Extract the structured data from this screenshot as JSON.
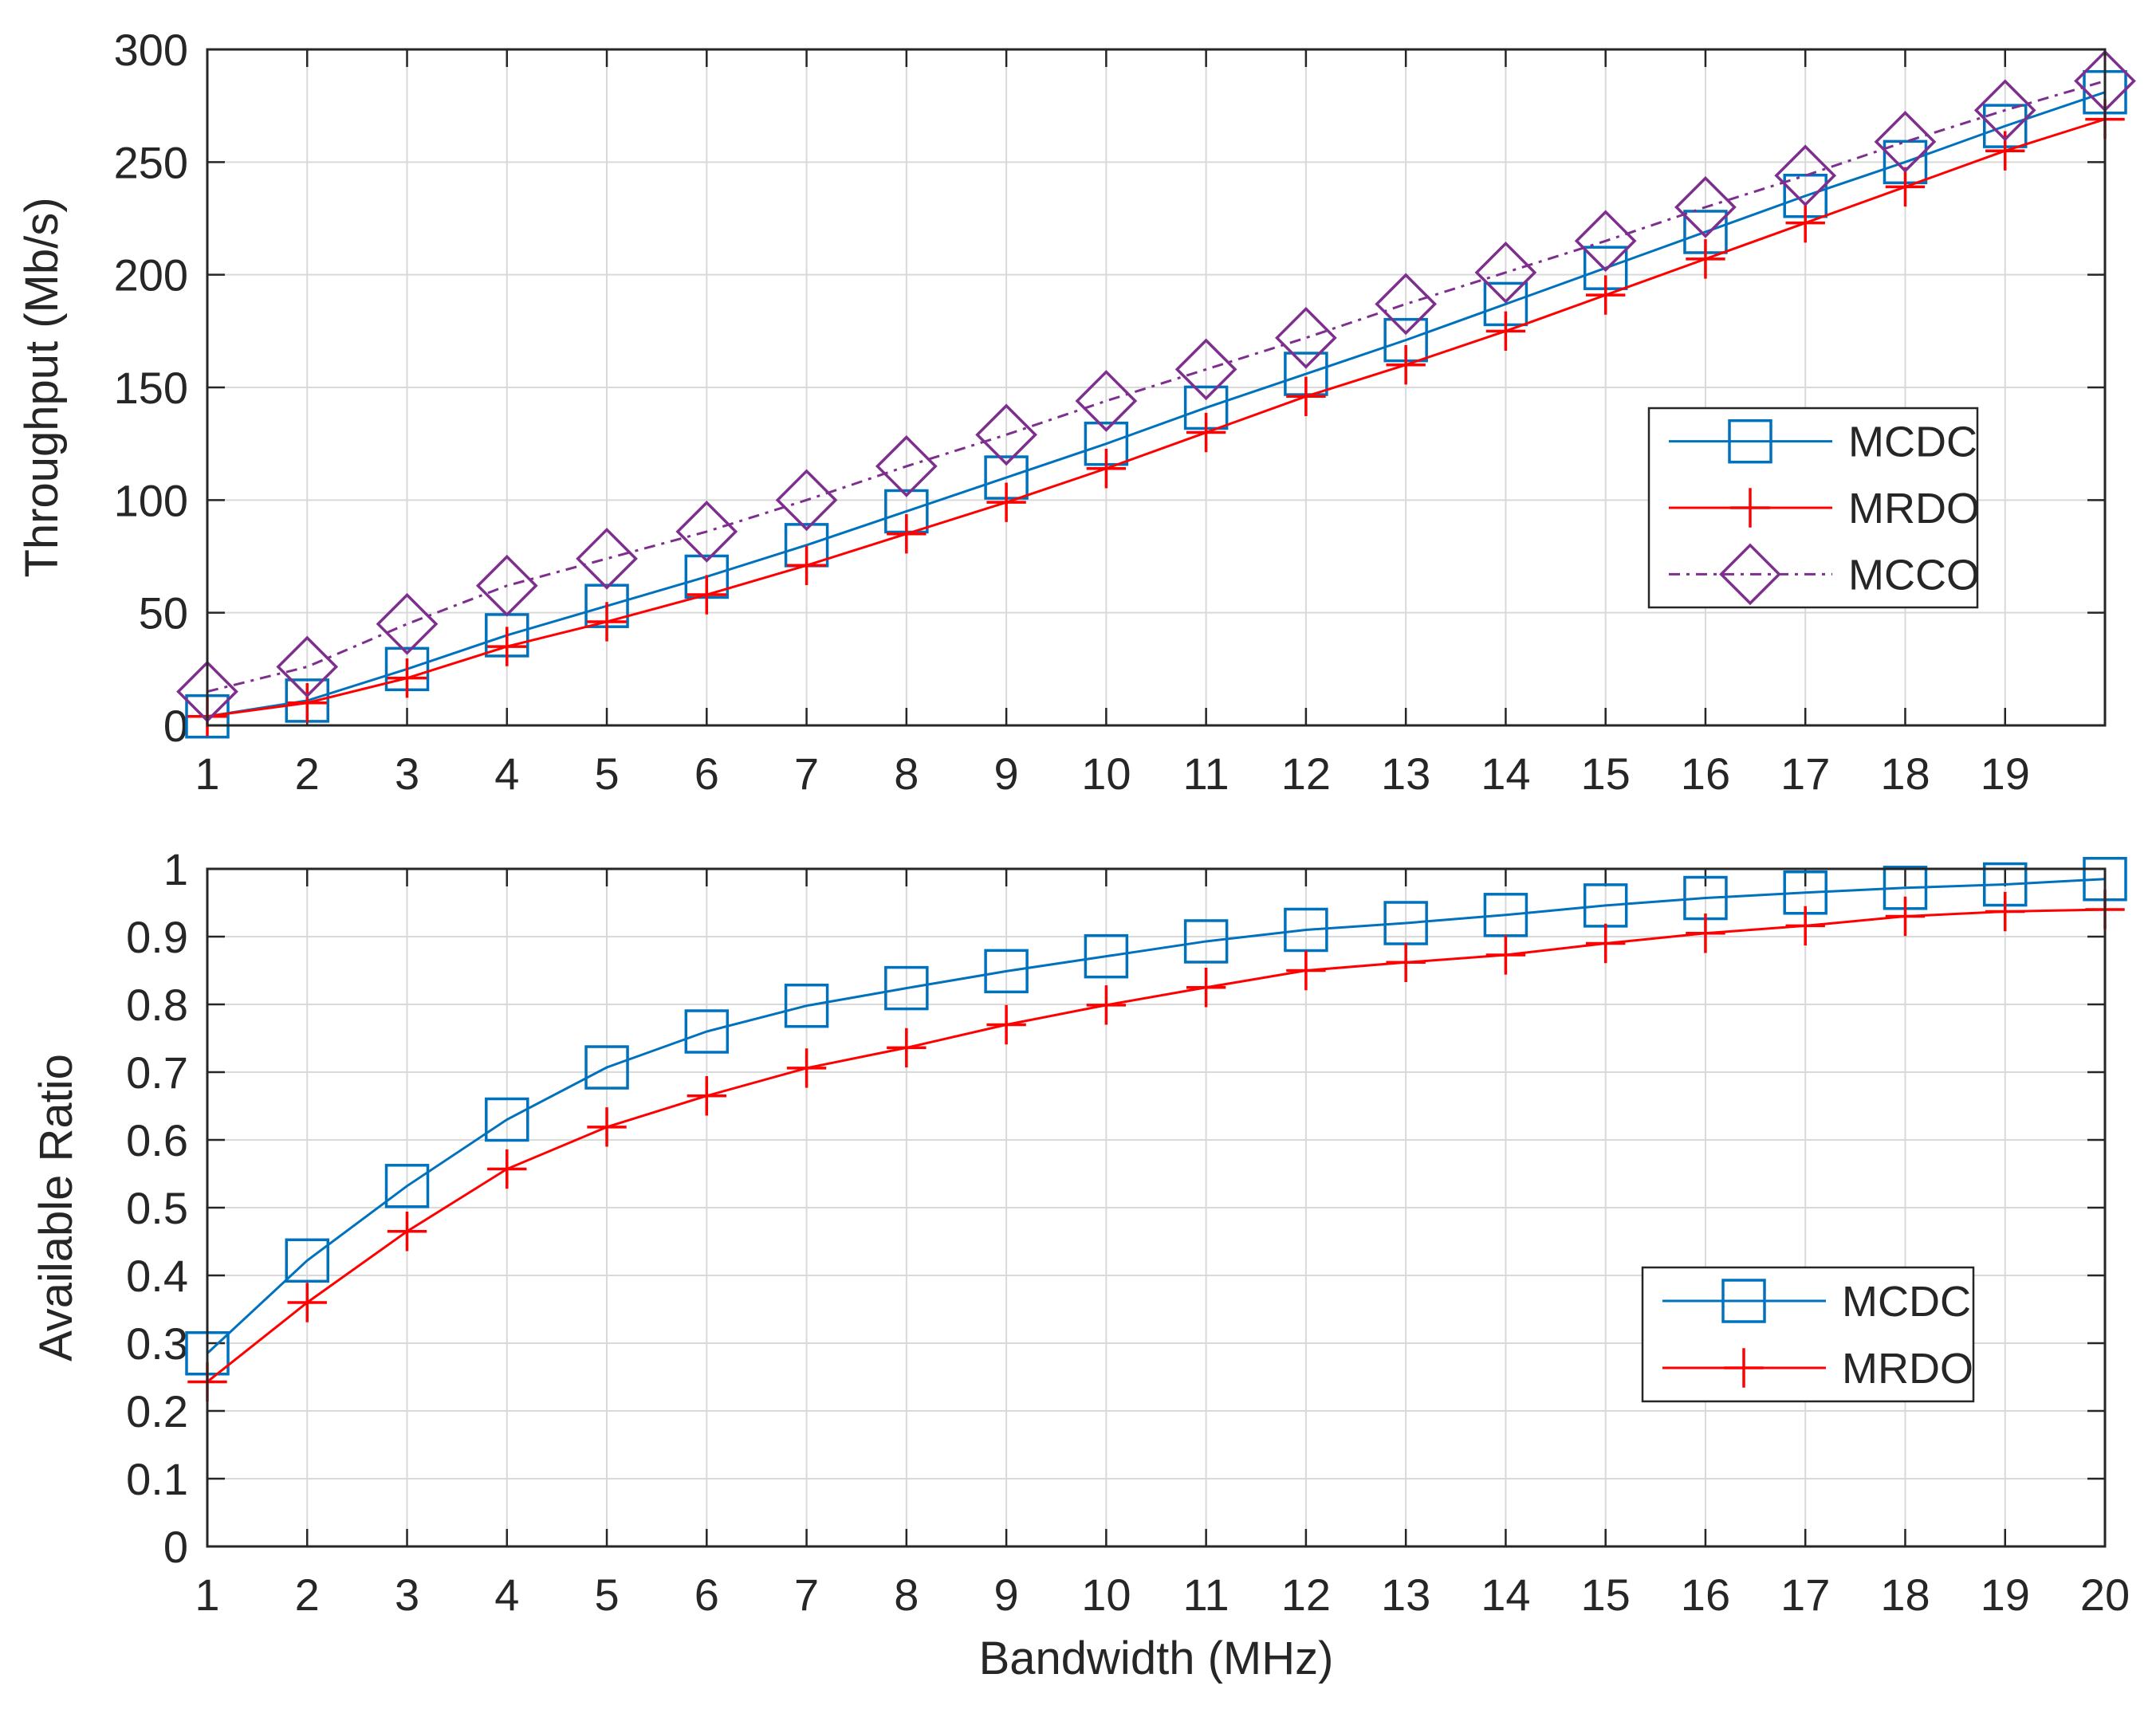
{
  "colors": {
    "mcdc": "#0072BD",
    "mrdo": "#FF0000",
    "mcco": "#7E2F8E",
    "axis": "#262626",
    "grid": "#D9D9D9"
  },
  "chart_data": [
    {
      "type": "line",
      "ylabel": "Throughput (Mb/s)",
      "xlabel": "",
      "xlim": [
        1,
        20
      ],
      "ylim": [
        0,
        300
      ],
      "x_ticks": [
        "1",
        "2",
        "3",
        "4",
        "5",
        "6",
        "7",
        "8",
        "9",
        "10",
        "11",
        "12",
        "13",
        "14",
        "15",
        "16",
        "17",
        "18",
        "19"
      ],
      "y_ticks": [
        "0",
        "50",
        "100",
        "150",
        "200",
        "250",
        "300"
      ],
      "grid": true,
      "legend_position": "center-right",
      "x": [
        1,
        2,
        3,
        4,
        5,
        6,
        7,
        8,
        9,
        10,
        11,
        12,
        13,
        14,
        15,
        16,
        17,
        18,
        19,
        20
      ],
      "series": [
        {
          "name": "MCDC",
          "color_key": "mcdc",
          "marker": "square",
          "dash": "solid",
          "values": [
            4,
            11,
            25,
            40,
            53,
            66,
            80,
            95,
            110,
            125,
            141,
            156,
            171,
            187,
            203,
            219,
            235,
            250,
            266,
            281
          ]
        },
        {
          "name": "MRDO",
          "color_key": "mrdo",
          "marker": "plus",
          "dash": "solid",
          "values": [
            4,
            10,
            21,
            35,
            46,
            58,
            71,
            85,
            99,
            114,
            130,
            146,
            160,
            175,
            191,
            207,
            223,
            239,
            255,
            269
          ]
        },
        {
          "name": "MCCO",
          "color_key": "mcco",
          "marker": "diamond",
          "dash": "dashdot",
          "values": [
            15,
            26,
            45,
            62,
            74,
            86,
            100,
            115,
            129,
            144,
            158,
            172,
            187,
            201,
            215,
            230,
            244,
            259,
            273,
            286
          ]
        }
      ]
    },
    {
      "type": "line",
      "ylabel": "Available Ratio",
      "xlabel": "Bandwidth (MHz)",
      "xlim": [
        1,
        20
      ],
      "ylim": [
        0,
        1
      ],
      "x_ticks": [
        "1",
        "2",
        "3",
        "4",
        "5",
        "6",
        "7",
        "8",
        "9",
        "10",
        "11",
        "12",
        "13",
        "14",
        "15",
        "16",
        "17",
        "18",
        "19",
        "20"
      ],
      "y_ticks": [
        "0",
        "0.1",
        "0.2",
        "0.3",
        "0.4",
        "0.5",
        "0.6",
        "0.7",
        "0.8",
        "0.9",
        "1"
      ],
      "grid": true,
      "legend_position": "bottom-right",
      "x": [
        1,
        2,
        3,
        4,
        5,
        6,
        7,
        8,
        9,
        10,
        11,
        12,
        13,
        14,
        15,
        16,
        17,
        18,
        19,
        20
      ],
      "series": [
        {
          "name": "MCDC",
          "color_key": "mcdc",
          "marker": "square",
          "dash": "solid",
          "values": [
            0.285,
            0.422,
            0.532,
            0.63,
            0.707,
            0.76,
            0.798,
            0.824,
            0.849,
            0.871,
            0.893,
            0.91,
            0.92,
            0.932,
            0.946,
            0.957,
            0.965,
            0.972,
            0.977,
            0.985
          ]
        },
        {
          "name": "MRDO",
          "color_key": "mrdo",
          "marker": "plus",
          "dash": "solid",
          "values": [
            0.243,
            0.36,
            0.465,
            0.557,
            0.619,
            0.665,
            0.706,
            0.736,
            0.77,
            0.799,
            0.825,
            0.85,
            0.862,
            0.873,
            0.89,
            0.905,
            0.916,
            0.93,
            0.937,
            0.94
          ]
        }
      ]
    }
  ]
}
